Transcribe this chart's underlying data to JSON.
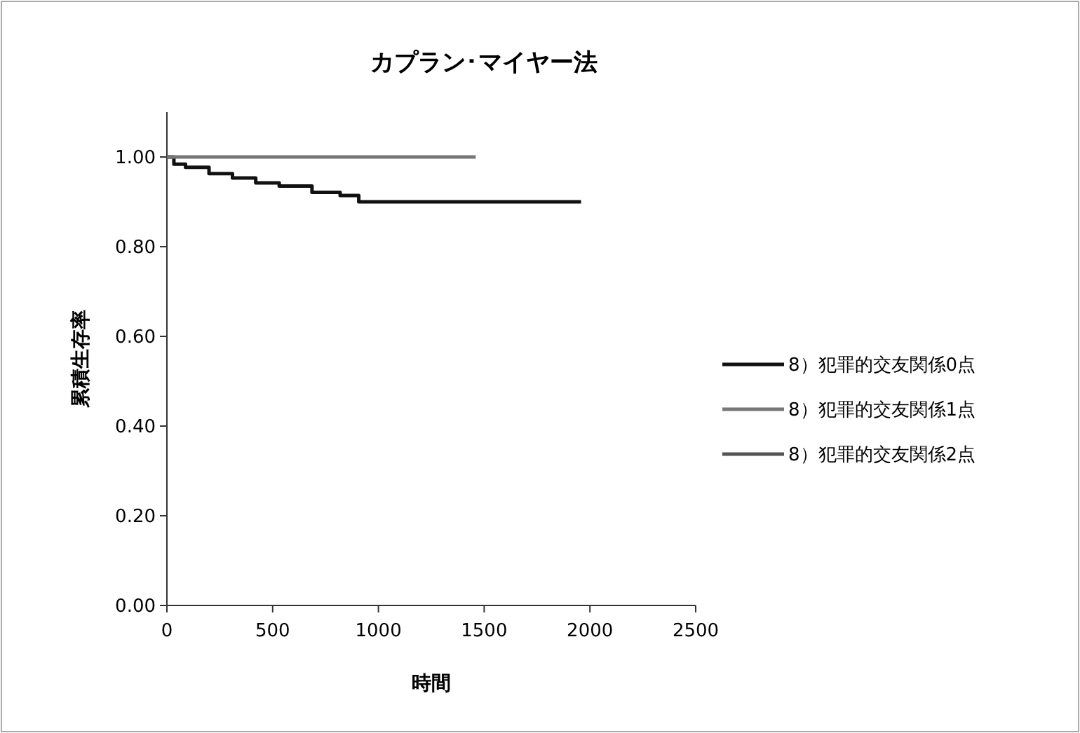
{
  "chart_data": {
    "type": "step",
    "title": "カプラン･マイヤー法",
    "xlabel": "時間",
    "ylabel": "累積生存率",
    "xlim": [
      0,
      2500
    ],
    "xticks": [
      0,
      500,
      1000,
      1500,
      2000,
      2500
    ],
    "ylim": [
      0,
      1.1
    ],
    "yticks": [
      {
        "value": 0,
        "label": "0.00"
      },
      {
        "value": 0.2,
        "label": "0.20"
      },
      {
        "value": 0.4,
        "label": "0.40"
      },
      {
        "value": 0.6,
        "label": "0.60"
      },
      {
        "value": 0.8,
        "label": "0.80"
      },
      {
        "value": 1,
        "label": "1.00"
      }
    ],
    "legend": "right",
    "grid": false,
    "series": [
      {
        "name": "8）犯罪的交友関係0点",
        "color": "#111111",
        "x": [
          0,
          33,
          88,
          199,
          310,
          420,
          531,
          653,
          686,
          819,
          907,
          1958
        ],
        "values": [
          1.0,
          0.984,
          0.977,
          0.963,
          0.953,
          0.942,
          0.935,
          0.935,
          0.921,
          0.914,
          0.9,
          0.9
        ]
      },
      {
        "name": "8）犯罪的交友関係1点",
        "color": "#777777",
        "x": [
          0,
          1460
        ],
        "values": [
          1.0,
          1.0
        ]
      },
      {
        "name": "8）犯罪的交友関係2点",
        "color": "#555555"
      }
    ]
  }
}
